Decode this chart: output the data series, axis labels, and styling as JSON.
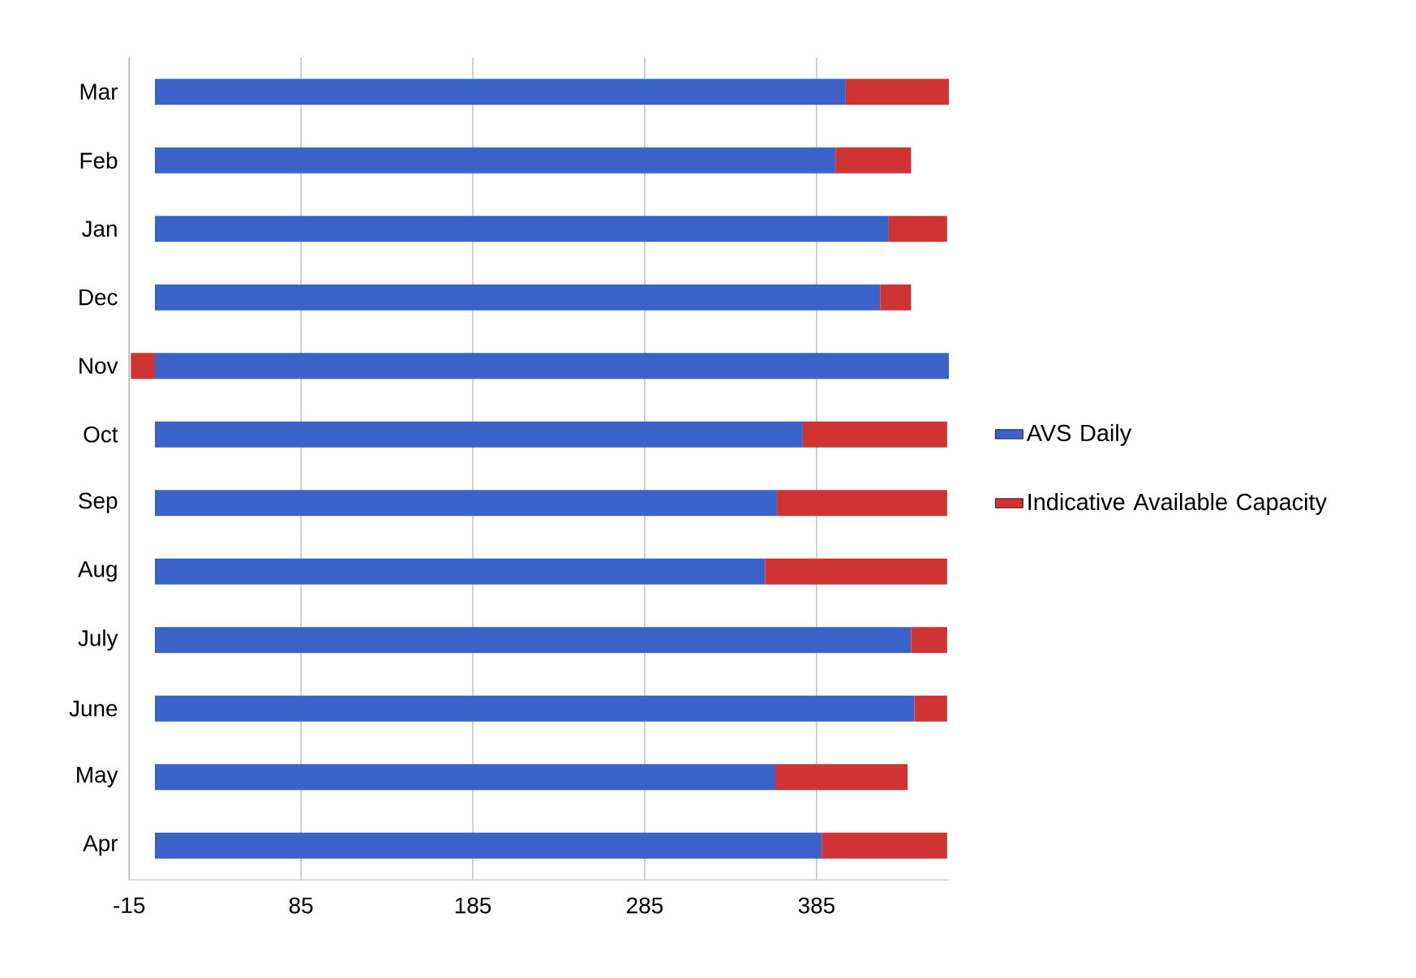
{
  "chart_data": {
    "type": "bar",
    "orientation": "horizontal",
    "stacked": true,
    "categories": [
      "Mar",
      "Feb",
      "Jan",
      "Dec",
      "Nov",
      "Oct",
      "Sep",
      "Aug",
      "July",
      "June",
      "May",
      "Apr"
    ],
    "series": [
      {
        "name": "AVS Daily",
        "color": "#3a62c8",
        "values": [
          402,
          396,
          427,
          422,
          462,
          377,
          362,
          355,
          440,
          442,
          361,
          388
        ]
      },
      {
        "name": "Indicative Available Capacity",
        "color": "#d03333",
        "values": [
          60,
          44,
          34,
          18,
          -14,
          84,
          99,
          106,
          21,
          19,
          77,
          73
        ]
      }
    ],
    "xlim": [
      -15,
      462
    ],
    "xticks": [
      -15,
      85,
      185,
      285,
      385
    ],
    "grid": "x",
    "legend": "right"
  }
}
